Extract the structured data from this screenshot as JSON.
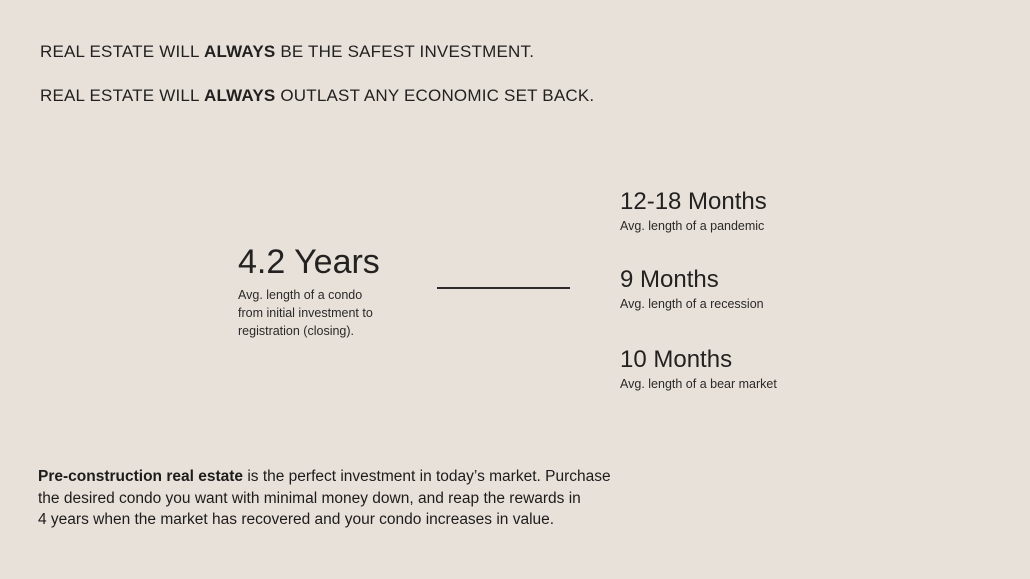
{
  "page": {
    "background_color": "#e8e1da",
    "text_color": "#1e1e1e",
    "divider_color": "#2b2a28"
  },
  "headline": {
    "line1": {
      "pre": "REAL ESTATE WILL ",
      "bold": "ALWAYS",
      "post": " BE THE SAFEST INVESTMENT."
    },
    "line2": {
      "pre": "REAL ESTATE WILL ",
      "bold": "ALWAYS",
      "post": " OUTLAST ANY ECONOMIC SET BACK."
    }
  },
  "comparison": {
    "left_stat": {
      "value": "4.2 Years",
      "caption_lines": [
        "Avg. length of a condo",
        "from initial investment to",
        "registration (closing)."
      ]
    },
    "right_stats": [
      {
        "value": "12-18 Months",
        "caption": "Avg. length of a pandemic"
      },
      {
        "value": "9 Months",
        "caption": "Avg. length of a recession"
      },
      {
        "value": "10 Months",
        "caption": "Avg. length of a bear market"
      }
    ]
  },
  "footer": {
    "line1_bold": "Pre-construction real estate",
    "line1_rest": " is the perfect investment in today’s market. Purchase",
    "line2": "the desired condo you want with minimal money down, and reap the rewards in",
    "line3": "4 years when the market has recovered and your condo increases in value."
  }
}
